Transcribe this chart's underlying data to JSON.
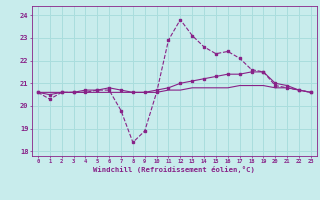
{
  "xlabel": "Windchill (Refroidissement éolien,°C)",
  "background_color": "#c8ecec",
  "grid_color": "#aadddd",
  "line_color": "#882288",
  "hours": [
    0,
    1,
    2,
    3,
    4,
    5,
    6,
    7,
    8,
    9,
    10,
    11,
    12,
    13,
    14,
    15,
    16,
    17,
    18,
    19,
    20,
    21,
    22,
    23
  ],
  "series1": [
    20.6,
    20.3,
    20.6,
    20.6,
    20.6,
    20.7,
    20.7,
    19.8,
    18.4,
    18.9,
    20.6,
    22.9,
    23.8,
    23.1,
    22.6,
    22.3,
    22.4,
    22.1,
    21.6,
    21.5,
    20.9,
    20.8,
    20.7,
    20.6
  ],
  "series2": [
    20.6,
    20.5,
    20.6,
    20.6,
    20.7,
    20.7,
    20.8,
    20.7,
    20.6,
    20.6,
    20.7,
    20.8,
    21.0,
    21.1,
    21.2,
    21.3,
    21.4,
    21.4,
    21.5,
    21.5,
    21.0,
    20.9,
    20.7,
    20.6
  ],
  "series3": [
    20.6,
    20.6,
    20.6,
    20.6,
    20.6,
    20.6,
    20.6,
    20.6,
    20.6,
    20.6,
    20.6,
    20.7,
    20.7,
    20.8,
    20.8,
    20.8,
    20.8,
    20.9,
    20.9,
    20.9,
    20.8,
    20.8,
    20.7,
    20.6
  ],
  "ylim": [
    17.8,
    24.4
  ],
  "yticks": [
    18,
    19,
    20,
    21,
    22,
    23,
    24
  ],
  "xticks": [
    0,
    1,
    2,
    3,
    4,
    5,
    6,
    7,
    8,
    9,
    10,
    11,
    12,
    13,
    14,
    15,
    16,
    17,
    18,
    19,
    20,
    21,
    22,
    23
  ]
}
